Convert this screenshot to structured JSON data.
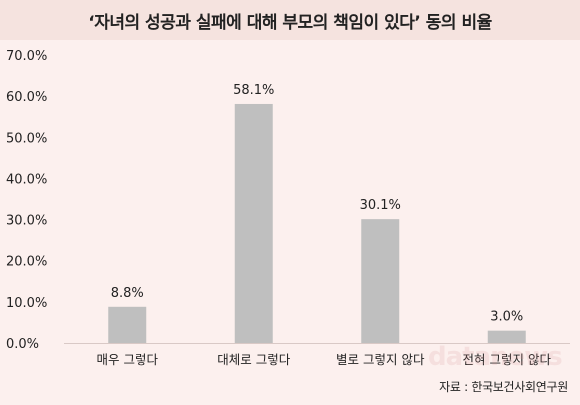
{
  "title": "‘자녀의 성공과 실패에 대해 부모의 책임이 있다’ 동의 비율",
  "source": "자료 : 한국보건사회연구원",
  "watermark": "datanews",
  "colors": {
    "title_background": "#f5e3df",
    "plot_background": "#fcf0ee",
    "bar": "#bfbfbf",
    "text": "#222222"
  },
  "chart_data": {
    "type": "bar",
    "categories": [
      "매우 그렇다",
      "대체로 그렇다",
      "별로 그렇지 않다",
      "전혀 그렇지 않다"
    ],
    "values": [
      8.8,
      58.1,
      30.1,
      3.0
    ],
    "data_labels": [
      "8.8%",
      "58.1%",
      "30.1%",
      "3.0%"
    ],
    "title": "‘자녀의 성공과 실패에 대해 부모의 책임이 있다’ 동의 비율",
    "xlabel": "",
    "ylabel": "",
    "ylim": [
      0,
      70
    ],
    "yticks": [
      0,
      10,
      20,
      30,
      40,
      50,
      60,
      70
    ],
    "ytick_labels": [
      "0.0%",
      "10.0%",
      "20.0%",
      "30.0%",
      "40.0%",
      "50.0%",
      "60.0%",
      "70.0%"
    ],
    "grid": false,
    "legend": "none"
  }
}
